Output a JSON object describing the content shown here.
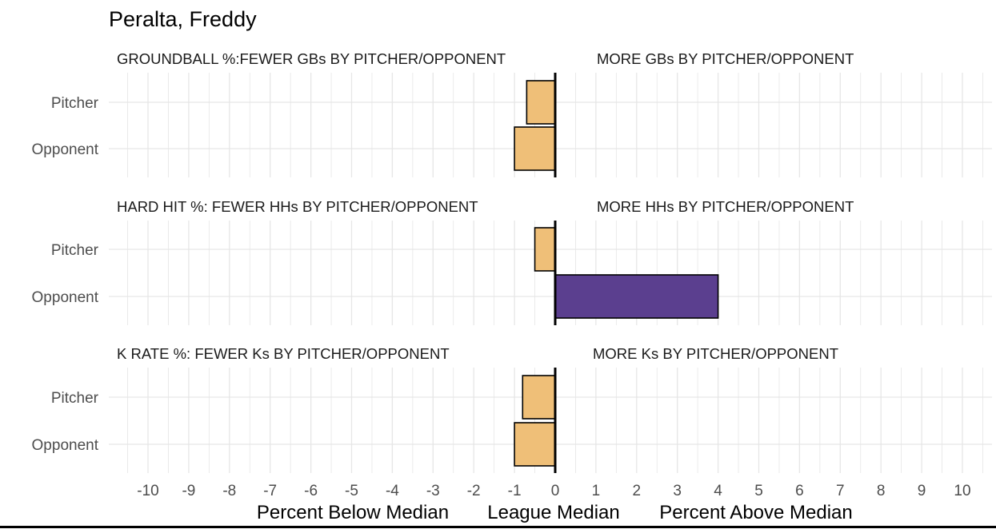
{
  "chart_data": {
    "type": "bar",
    "orientation": "horizontal",
    "title": "Peralta, Freddy",
    "categories": [
      "Pitcher",
      "Opponent"
    ],
    "xlim": [
      -10.5,
      10.5
    ],
    "x_ticks": [
      "-10",
      "-9",
      "-8",
      "-7",
      "-6",
      "-5",
      "-4",
      "-3",
      "-2",
      "-1",
      "0",
      "1",
      "2",
      "3",
      "4",
      "5",
      "6",
      "7",
      "8",
      "9",
      "10"
    ],
    "x_labels": {
      "left": "Percent Below Median",
      "center": "League Median",
      "right": "Percent Above Median"
    },
    "grid": true,
    "colors": {
      "below": "#efbf78",
      "above": "#5b3f8f",
      "outline": "#000000",
      "grid": "#e6e6e6"
    },
    "panels": [
      {
        "label_left": "GROUNDBALL %:FEWER GBs BY PITCHER/OPPONENT",
        "label_right": "MORE GBs BY PITCHER/OPPONENT",
        "values": [
          -0.7,
          -1.0
        ]
      },
      {
        "label_left": "HARD HIT %:  FEWER HHs BY PITCHER/OPPONENT",
        "label_right": "MORE HHs BY PITCHER/OPPONENT",
        "values": [
          -0.5,
          4.0
        ]
      },
      {
        "label_left": "K RATE %:    FEWER Ks BY PITCHER/OPPONENT",
        "label_right": "MORE Ks BY PITCHER/OPPONENT",
        "values": [
          -0.8,
          -1.0
        ]
      }
    ]
  }
}
